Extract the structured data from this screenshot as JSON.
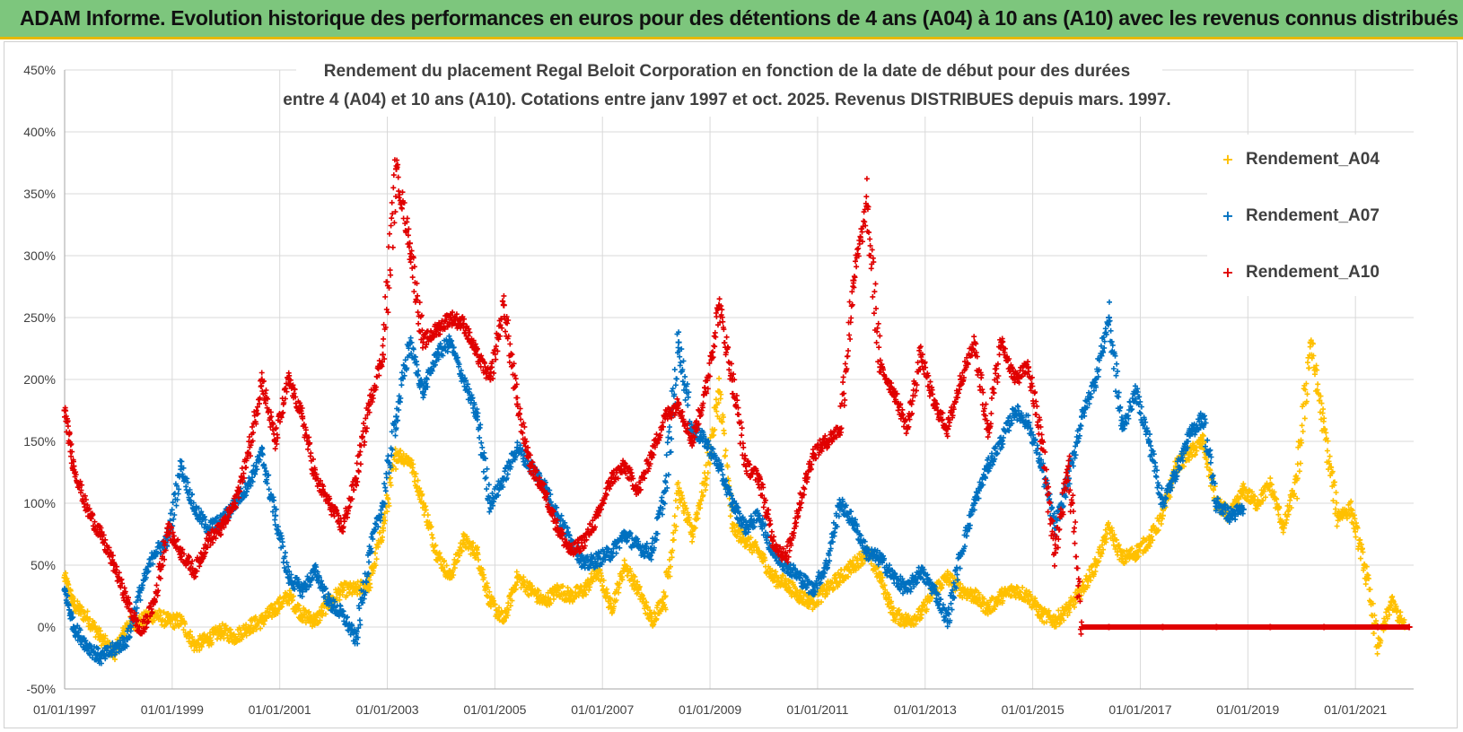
{
  "header": {
    "banner_title": "ADAM Informe. Evolution historique des performances en euros pour des détentions de 4 ans (A04) à 10 ans (A10) avec les revenus connus distribués"
  },
  "colors": {
    "banner_bg": "#7dc67d",
    "banner_border": "#e6b800",
    "A04": "#FFC000",
    "A07": "#0070C0",
    "A10": "#E00000",
    "grid": "#d9d9d9"
  },
  "chart_data": {
    "type": "scatter",
    "title_lines": [
      "Rendement du placement Regal Beloit Corporation en fonction de la date de début pour des durées",
      "entre 4 (A04) et 10 ans (A10). Cotations entre janv 1997 et oct. 2025. Revenus DISTRIBUES depuis mars. 1997."
    ],
    "xlabel": "",
    "ylabel": "",
    "x_range": [
      "1997-01-01",
      "2022-01-31"
    ],
    "x_ticks": [
      "01/01/1997",
      "01/01/1999",
      "01/01/2001",
      "01/01/2003",
      "01/01/2005",
      "01/01/2007",
      "01/01/2009",
      "01/01/2011",
      "01/01/2013",
      "01/01/2015",
      "01/01/2017",
      "01/01/2019",
      "01/01/2021"
    ],
    "y_range": [
      -50,
      450
    ],
    "y_ticks": [
      "-50%",
      "0%",
      "50%",
      "100%",
      "150%",
      "200%",
      "250%",
      "300%",
      "350%",
      "400%",
      "450%"
    ],
    "grid": true,
    "legend_position": "top-right",
    "series": [
      {
        "name": "Rendement_A04",
        "color": "#FFC000",
        "points": [
          [
            "1997-01",
            40
          ],
          [
            "1997-03",
            18
          ],
          [
            "1997-06",
            8
          ],
          [
            "1997-09",
            -8
          ],
          [
            "1997-12",
            -22
          ],
          [
            "1998-03",
            2
          ],
          [
            "1998-06",
            5
          ],
          [
            "1998-09",
            10
          ],
          [
            "1998-12",
            5
          ],
          [
            "1999-03",
            5
          ],
          [
            "1999-06",
            -15
          ],
          [
            "1999-09",
            -10
          ],
          [
            "1999-12",
            -3
          ],
          [
            "2000-03",
            -8
          ],
          [
            "2000-06",
            0
          ],
          [
            "2000-09",
            5
          ],
          [
            "2000-12",
            15
          ],
          [
            "2001-03",
            25
          ],
          [
            "2001-06",
            10
          ],
          [
            "2001-09",
            5
          ],
          [
            "2001-12",
            20
          ],
          [
            "2002-03",
            30
          ],
          [
            "2002-06",
            30
          ],
          [
            "2002-09",
            35
          ],
          [
            "2002-12",
            80
          ],
          [
            "2003-03",
            140
          ],
          [
            "2003-06",
            135
          ],
          [
            "2003-09",
            100
          ],
          [
            "2003-12",
            60
          ],
          [
            "2004-03",
            40
          ],
          [
            "2004-06",
            70
          ],
          [
            "2004-09",
            60
          ],
          [
            "2004-12",
            20
          ],
          [
            "2005-03",
            5
          ],
          [
            "2005-06",
            40
          ],
          [
            "2005-09",
            30
          ],
          [
            "2005-12",
            20
          ],
          [
            "2006-03",
            30
          ],
          [
            "2006-06",
            25
          ],
          [
            "2006-09",
            30
          ],
          [
            "2006-12",
            45
          ],
          [
            "2007-03",
            15
          ],
          [
            "2007-06",
            50
          ],
          [
            "2007-09",
            30
          ],
          [
            "2007-12",
            5
          ],
          [
            "2008-03",
            25
          ],
          [
            "2008-06",
            110
          ],
          [
            "2008-09",
            75
          ],
          [
            "2008-12",
            120
          ],
          [
            "2009-03",
            190
          ],
          [
            "2009-06",
            80
          ],
          [
            "2009-09",
            70
          ],
          [
            "2009-12",
            60
          ],
          [
            "2010-03",
            40
          ],
          [
            "2010-06",
            35
          ],
          [
            "2010-09",
            25
          ],
          [
            "2010-12",
            20
          ],
          [
            "2011-03",
            30
          ],
          [
            "2011-06",
            40
          ],
          [
            "2011-09",
            50
          ],
          [
            "2011-12",
            60
          ],
          [
            "2012-03",
            40
          ],
          [
            "2012-06",
            10
          ],
          [
            "2012-09",
            5
          ],
          [
            "2012-12",
            10
          ],
          [
            "2013-03",
            30
          ],
          [
            "2013-06",
            40
          ],
          [
            "2013-09",
            30
          ],
          [
            "2013-12",
            25
          ],
          [
            "2014-03",
            15
          ],
          [
            "2014-06",
            25
          ],
          [
            "2014-09",
            30
          ],
          [
            "2014-12",
            25
          ],
          [
            "2015-03",
            10
          ],
          [
            "2015-06",
            5
          ],
          [
            "2015-09",
            15
          ],
          [
            "2015-12",
            30
          ],
          [
            "2016-03",
            50
          ],
          [
            "2016-06",
            80
          ],
          [
            "2016-09",
            55
          ],
          [
            "2016-12",
            60
          ],
          [
            "2017-03",
            70
          ],
          [
            "2017-06",
            90
          ],
          [
            "2017-09",
            130
          ],
          [
            "2017-12",
            140
          ],
          [
            "2018-03",
            150
          ],
          [
            "2018-06",
            100
          ],
          [
            "2018-09",
            90
          ],
          [
            "2018-12",
            110
          ],
          [
            "2019-03",
            100
          ],
          [
            "2019-06",
            115
          ],
          [
            "2019-09",
            80
          ],
          [
            "2019-12",
            120
          ],
          [
            "2020-03",
            230
          ],
          [
            "2020-06",
            160
          ],
          [
            "2020-09",
            90
          ],
          [
            "2020-12",
            95
          ],
          [
            "2021-03",
            50
          ],
          [
            "2021-06",
            -15
          ],
          [
            "2021-09",
            20
          ],
          [
            "2021-12",
            0
          ]
        ]
      },
      {
        "name": "Rendement_A07",
        "color": "#0070C0",
        "points": [
          [
            "1997-01",
            30
          ],
          [
            "1997-03",
            0
          ],
          [
            "1997-06",
            -15
          ],
          [
            "1997-09",
            -25
          ],
          [
            "1997-12",
            -18
          ],
          [
            "1998-03",
            -10
          ],
          [
            "1998-06",
            30
          ],
          [
            "1998-09",
            60
          ],
          [
            "1998-12",
            70
          ],
          [
            "1999-03",
            130
          ],
          [
            "1999-06",
            95
          ],
          [
            "1999-09",
            80
          ],
          [
            "1999-12",
            85
          ],
          [
            "2000-03",
            100
          ],
          [
            "2000-06",
            115
          ],
          [
            "2000-09",
            140
          ],
          [
            "2000-12",
            90
          ],
          [
            "2001-03",
            40
          ],
          [
            "2001-06",
            30
          ],
          [
            "2001-09",
            45
          ],
          [
            "2001-12",
            20
          ],
          [
            "2002-03",
            10
          ],
          [
            "2002-06",
            -10
          ],
          [
            "2002-09",
            60
          ],
          [
            "2002-12",
            100
          ],
          [
            "2003-03",
            170
          ],
          [
            "2003-06",
            230
          ],
          [
            "2003-09",
            190
          ],
          [
            "2003-12",
            220
          ],
          [
            "2004-03",
            230
          ],
          [
            "2004-06",
            200
          ],
          [
            "2004-09",
            170
          ],
          [
            "2004-12",
            100
          ],
          [
            "2005-03",
            120
          ],
          [
            "2005-06",
            145
          ],
          [
            "2005-09",
            130
          ],
          [
            "2005-12",
            115
          ],
          [
            "2006-03",
            90
          ],
          [
            "2006-06",
            70
          ],
          [
            "2006-09",
            50
          ],
          [
            "2006-12",
            55
          ],
          [
            "2007-03",
            60
          ],
          [
            "2007-06",
            75
          ],
          [
            "2007-09",
            65
          ],
          [
            "2007-12",
            60
          ],
          [
            "2008-03",
            110
          ],
          [
            "2008-06",
            230
          ],
          [
            "2008-09",
            160
          ],
          [
            "2008-12",
            150
          ],
          [
            "2009-03",
            130
          ],
          [
            "2009-06",
            100
          ],
          [
            "2009-09",
            80
          ],
          [
            "2009-12",
            90
          ],
          [
            "2010-03",
            60
          ],
          [
            "2010-06",
            50
          ],
          [
            "2010-09",
            40
          ],
          [
            "2010-12",
            30
          ],
          [
            "2011-03",
            50
          ],
          [
            "2011-06",
            100
          ],
          [
            "2011-09",
            85
          ],
          [
            "2011-12",
            60
          ],
          [
            "2012-03",
            55
          ],
          [
            "2012-06",
            40
          ],
          [
            "2012-09",
            30
          ],
          [
            "2012-12",
            45
          ],
          [
            "2013-03",
            30
          ],
          [
            "2013-06",
            5
          ],
          [
            "2013-09",
            60
          ],
          [
            "2013-12",
            100
          ],
          [
            "2014-03",
            130
          ],
          [
            "2014-06",
            150
          ],
          [
            "2014-09",
            175
          ],
          [
            "2014-12",
            165
          ],
          [
            "2015-03",
            130
          ],
          [
            "2015-06",
            80
          ],
          [
            "2015-09",
            120
          ],
          [
            "2015-12",
            170
          ],
          [
            "2016-03",
            200
          ],
          [
            "2016-06",
            250
          ],
          [
            "2016-09",
            160
          ],
          [
            "2016-12",
            190
          ],
          [
            "2017-03",
            150
          ],
          [
            "2017-06",
            100
          ],
          [
            "2017-09",
            125
          ],
          [
            "2017-12",
            155
          ],
          [
            "2018-03",
            170
          ],
          [
            "2018-06",
            100
          ],
          [
            "2018-09",
            90
          ],
          [
            "2018-12",
            95
          ]
        ]
      },
      {
        "name": "Rendement_A10",
        "color": "#E00000",
        "points": [
          [
            "1997-01",
            175
          ],
          [
            "1997-03",
            130
          ],
          [
            "1997-06",
            95
          ],
          [
            "1997-09",
            75
          ],
          [
            "1997-12",
            50
          ],
          [
            "1998-03",
            20
          ],
          [
            "1998-06",
            -5
          ],
          [
            "1998-09",
            20
          ],
          [
            "1998-12",
            80
          ],
          [
            "1999-03",
            60
          ],
          [
            "1999-06",
            45
          ],
          [
            "1999-09",
            70
          ],
          [
            "1999-12",
            80
          ],
          [
            "2000-03",
            100
          ],
          [
            "2000-06",
            140
          ],
          [
            "2000-09",
            200
          ],
          [
            "2000-12",
            150
          ],
          [
            "2001-03",
            200
          ],
          [
            "2001-06",
            170
          ],
          [
            "2001-09",
            120
          ],
          [
            "2001-12",
            100
          ],
          [
            "2002-03",
            80
          ],
          [
            "2002-06",
            120
          ],
          [
            "2002-09",
            180
          ],
          [
            "2002-12",
            220
          ],
          [
            "2003-03",
            370
          ],
          [
            "2003-06",
            310
          ],
          [
            "2003-09",
            230
          ],
          [
            "2003-12",
            240
          ],
          [
            "2004-03",
            250
          ],
          [
            "2004-06",
            245
          ],
          [
            "2004-09",
            220
          ],
          [
            "2004-12",
            200
          ],
          [
            "2005-03",
            260
          ],
          [
            "2005-06",
            180
          ],
          [
            "2005-09",
            130
          ],
          [
            "2005-12",
            110
          ],
          [
            "2006-03",
            80
          ],
          [
            "2006-06",
            60
          ],
          [
            "2006-09",
            70
          ],
          [
            "2006-12",
            90
          ],
          [
            "2007-03",
            120
          ],
          [
            "2007-06",
            130
          ],
          [
            "2007-09",
            110
          ],
          [
            "2007-12",
            140
          ],
          [
            "2008-03",
            170
          ],
          [
            "2008-06",
            180
          ],
          [
            "2008-09",
            150
          ],
          [
            "2008-12",
            190
          ],
          [
            "2009-03",
            260
          ],
          [
            "2009-06",
            200
          ],
          [
            "2009-09",
            130
          ],
          [
            "2009-12",
            120
          ],
          [
            "2010-03",
            70
          ],
          [
            "2010-06",
            55
          ],
          [
            "2010-09",
            100
          ],
          [
            "2010-12",
            140
          ],
          [
            "2011-03",
            150
          ],
          [
            "2011-06",
            160
          ],
          [
            "2011-09",
            280
          ],
          [
            "2011-12",
            340
          ],
          [
            "2012-03",
            210
          ],
          [
            "2012-06",
            190
          ],
          [
            "2012-09",
            160
          ],
          [
            "2012-12",
            220
          ],
          [
            "2013-03",
            180
          ],
          [
            "2013-06",
            160
          ],
          [
            "2013-09",
            200
          ],
          [
            "2013-12",
            230
          ],
          [
            "2014-03",
            160
          ],
          [
            "2014-06",
            230
          ],
          [
            "2014-09",
            200
          ],
          [
            "2014-12",
            210
          ],
          [
            "2015-03",
            150
          ],
          [
            "2015-06",
            60
          ],
          [
            "2015-09",
            130
          ],
          [
            "2015-12",
            0
          ],
          [
            "2016-06",
            0
          ],
          [
            "2017-06",
            0
          ],
          [
            "2018-06",
            0
          ],
          [
            "2019-06",
            0
          ],
          [
            "2020-06",
            0
          ],
          [
            "2021-06",
            0
          ],
          [
            "2022-01",
            0
          ]
        ]
      }
    ]
  }
}
